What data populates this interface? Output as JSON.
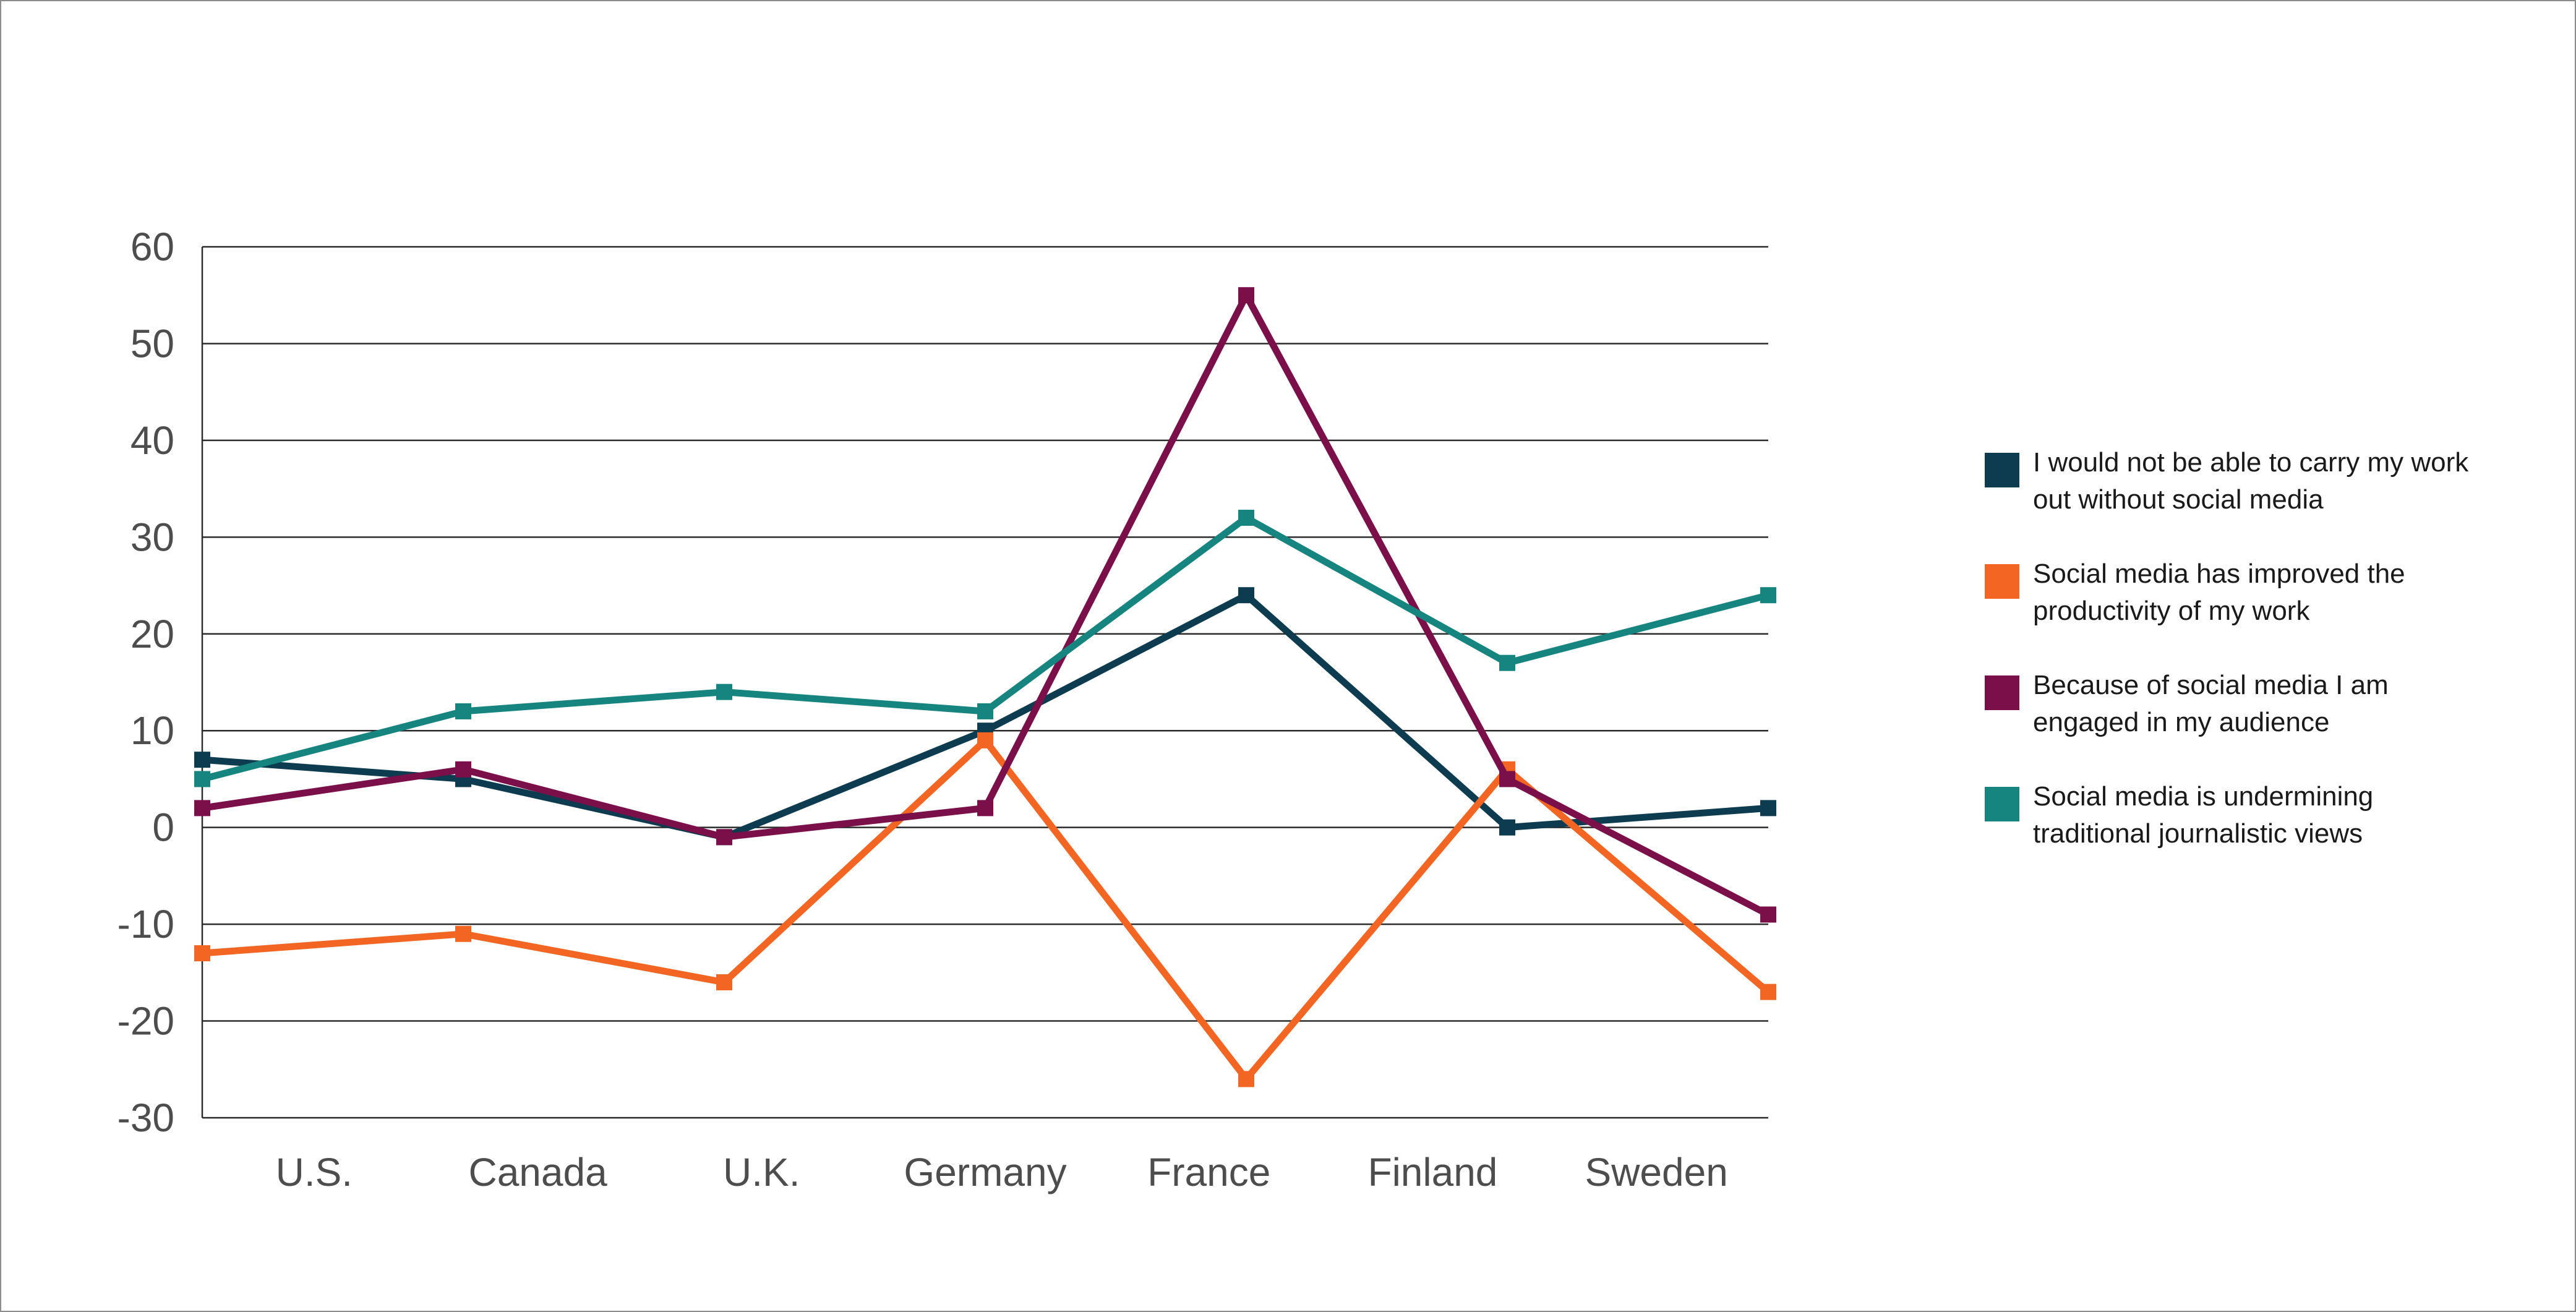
{
  "chart_data": {
    "type": "line",
    "title": "",
    "xlabel": "",
    "ylabel": "",
    "ylim": [
      -30,
      60
    ],
    "yticks": [
      60,
      50,
      40,
      30,
      20,
      10,
      0,
      -10,
      -20,
      -30
    ],
    "categories": [
      "U.S.",
      "Canada",
      "U.K.",
      "Germany",
      "France",
      "Finland",
      "Sweden"
    ],
    "grid": "horizontal",
    "legend_position": "right",
    "series": [
      {
        "name": "I would not be able to carry my work out without social media",
        "legend_lines": [
          "I would not be able to carry my work",
          "out without social media"
        ],
        "color": "#0d3b4f",
        "values": [
          7,
          5,
          -1,
          10,
          24,
          0,
          2
        ]
      },
      {
        "name": "Social media has improved the productivity of my work",
        "legend_lines": [
          "Social media has improved the",
          "productivity of my work"
        ],
        "color": "#f26522",
        "values": [
          -13,
          -11,
          -16,
          9,
          -26,
          6,
          -17
        ]
      },
      {
        "name": "Because of social media I am engaged in my audience",
        "legend_lines": [
          "Because of social media I am",
          "engaged in my audience"
        ],
        "color": "#7b0f4a",
        "values": [
          2,
          6,
          -1,
          2,
          55,
          5,
          -9
        ]
      },
      {
        "name": "Social media is undermining traditional journalistic views",
        "legend_lines": [
          "Social media is undermining",
          "traditional journalistic views"
        ],
        "color": "#16847f",
        "values": [
          5,
          12,
          14,
          12,
          32,
          17,
          24
        ]
      }
    ]
  }
}
